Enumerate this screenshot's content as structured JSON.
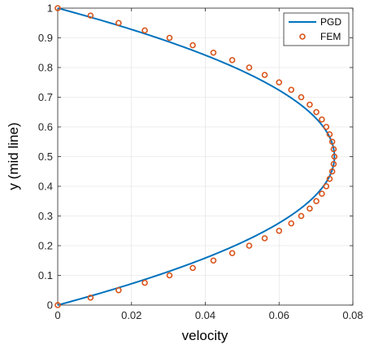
{
  "chart_data": {
    "type": "line",
    "title": "",
    "xlabel": "velocity",
    "ylabel": "y (mid line)",
    "xlim": [
      0,
      0.08
    ],
    "ylim": [
      0,
      1
    ],
    "xticks": [
      0,
      0.02,
      0.04,
      0.06,
      0.08
    ],
    "xtick_labels": [
      "0",
      "0.02",
      "0.04",
      "0.06",
      "0.08"
    ],
    "yticks": [
      0,
      0.1,
      0.2,
      0.3,
      0.4,
      0.5,
      0.6,
      0.7,
      0.8,
      0.9,
      1
    ],
    "ytick_labels": [
      "0",
      "0.1",
      "0.2",
      "0.3",
      "0.4",
      "0.5",
      "0.6",
      "0.7",
      "0.8",
      "0.9",
      "1"
    ],
    "grid": true,
    "legend_position": "top-right",
    "series": [
      {
        "name": "PGD",
        "style": "line",
        "color": "#0072BD",
        "formula": "velocity = 0.3 * y * (1 - y)"
      },
      {
        "name": "FEM",
        "style": "markers",
        "color": "#D95319",
        "x": [
          0,
          0.0089,
          0.0165,
          0.0236,
          0.0303,
          0.0366,
          0.0422,
          0.0473,
          0.0519,
          0.0561,
          0.06,
          0.0633,
          0.066,
          0.0683,
          0.0701,
          0.0716,
          0.0728,
          0.0737,
          0.0744,
          0.0748,
          0.075,
          0.0748,
          0.0744,
          0.0737,
          0.0728,
          0.0716,
          0.0701,
          0.0683,
          0.066,
          0.0633,
          0.06,
          0.0561,
          0.0519,
          0.0473,
          0.0422,
          0.0366,
          0.0303,
          0.0236,
          0.0165,
          0.0089,
          0
        ],
        "y": [
          0,
          0.025,
          0.05,
          0.075,
          0.1,
          0.125,
          0.15,
          0.175,
          0.2,
          0.225,
          0.25,
          0.275,
          0.3,
          0.325,
          0.35,
          0.375,
          0.4,
          0.425,
          0.45,
          0.475,
          0.5,
          0.525,
          0.55,
          0.575,
          0.6,
          0.625,
          0.65,
          0.675,
          0.7,
          0.725,
          0.75,
          0.775,
          0.8,
          0.825,
          0.85,
          0.875,
          0.9,
          0.925,
          0.95,
          0.975,
          1
        ]
      }
    ]
  }
}
